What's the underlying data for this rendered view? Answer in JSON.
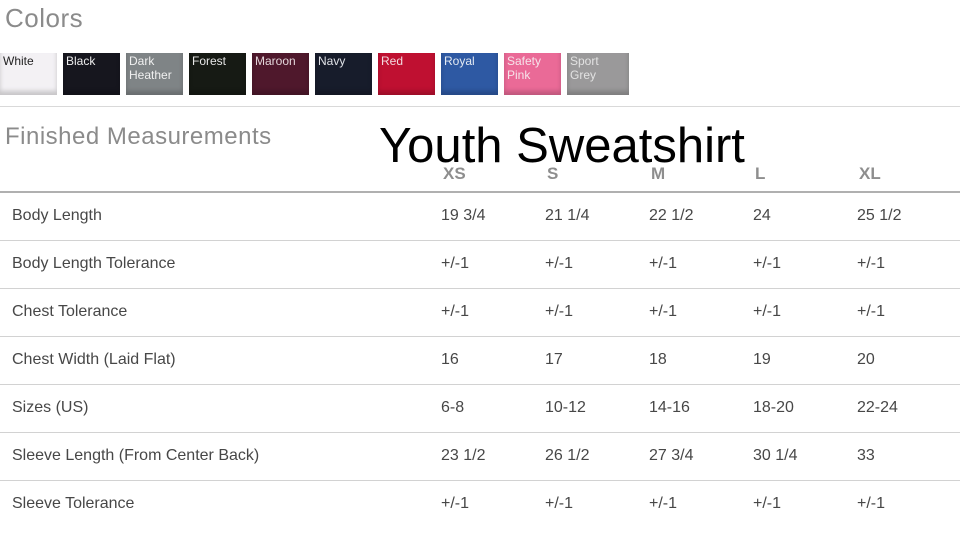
{
  "colors_section": {
    "title": "Colors",
    "swatches": [
      {
        "label": "White",
        "bg": "#f3f1f4",
        "fg": "#222222"
      },
      {
        "label": "Black",
        "bg": "#16161e",
        "fg": "#ededed"
      },
      {
        "label": "Dark Heather",
        "bg": "#7f8486",
        "fg": "#f0f0f0"
      },
      {
        "label": "Forest",
        "bg": "#161a14",
        "fg": "#e6e6e6"
      },
      {
        "label": "Maroon",
        "bg": "#4f182c",
        "fg": "#e3d5da"
      },
      {
        "label": "Navy",
        "bg": "#171c2b",
        "fg": "#dfe1e6"
      },
      {
        "label": "Red",
        "bg": "#bf1031",
        "fg": "#f2d9de"
      },
      {
        "label": "Royal",
        "bg": "#2e59a3",
        "fg": "#e3e9f2"
      },
      {
        "label": "Safety Pink",
        "bg": "#ea6a97",
        "fg": "#f6e3ea"
      },
      {
        "label": "Sport Grey",
        "bg": "#9a999a",
        "fg": "#e2e2e2"
      }
    ]
  },
  "measurements_section": {
    "title": "Finished Measurements",
    "product_title": "Youth Sweatshirt",
    "table": {
      "size_headers": [
        "XS",
        "S",
        "M",
        "L",
        "XL"
      ],
      "rows": [
        {
          "label": "Body Length",
          "values": [
            "19 3/4",
            "21 1/4",
            "22 1/2",
            "24",
            "25 1/2"
          ]
        },
        {
          "label": "Body Length Tolerance",
          "values": [
            "+/-1",
            "+/-1",
            "+/-1",
            "+/-1",
            "+/-1"
          ]
        },
        {
          "label": "Chest Tolerance",
          "values": [
            "+/-1",
            "+/-1",
            "+/-1",
            "+/-1",
            "+/-1"
          ]
        },
        {
          "label": "Chest Width (Laid Flat)",
          "values": [
            "16",
            "17",
            "18",
            "19",
            "20"
          ]
        },
        {
          "label": "Sizes (US)",
          "values": [
            "6-8",
            "10-12",
            "14-16",
            "18-20",
            "22-24"
          ]
        },
        {
          "label": "Sleeve Length (From Center Back)",
          "values": [
            "23 1/2",
            "26 1/2",
            "27 3/4",
            "30 1/4",
            "33"
          ]
        },
        {
          "label": "Sleeve Tolerance",
          "values": [
            "+/-1",
            "+/-1",
            "+/-1",
            "+/-1",
            "+/-1"
          ]
        }
      ]
    }
  }
}
